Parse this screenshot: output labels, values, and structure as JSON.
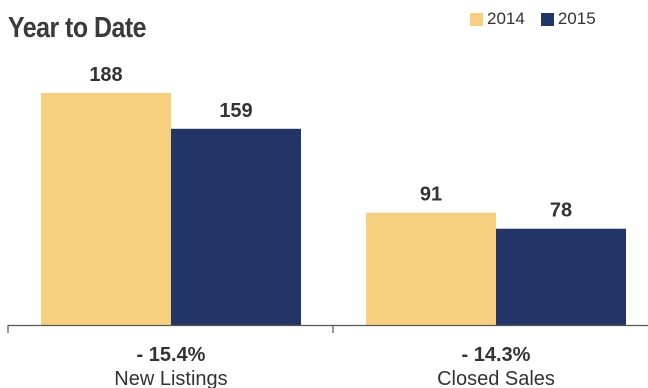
{
  "chart_data": {
    "type": "bar",
    "title": "Year to Date",
    "categories": [
      "New Listings",
      "Closed Sales"
    ],
    "change_labels": [
      "- 15.4%",
      "- 14.3%"
    ],
    "series": [
      {
        "name": "2014",
        "values": [
          188,
          91
        ],
        "color": "#f7d07f"
      },
      {
        "name": "2015",
        "values": [
          159,
          78
        ],
        "color": "#233566"
      }
    ],
    "legend_position": "top-right",
    "ylim": [
      0,
      188
    ],
    "grid": false,
    "xlabel": "",
    "ylabel": ""
  },
  "colors": {
    "axis": "#555555",
    "text": "#333333"
  }
}
